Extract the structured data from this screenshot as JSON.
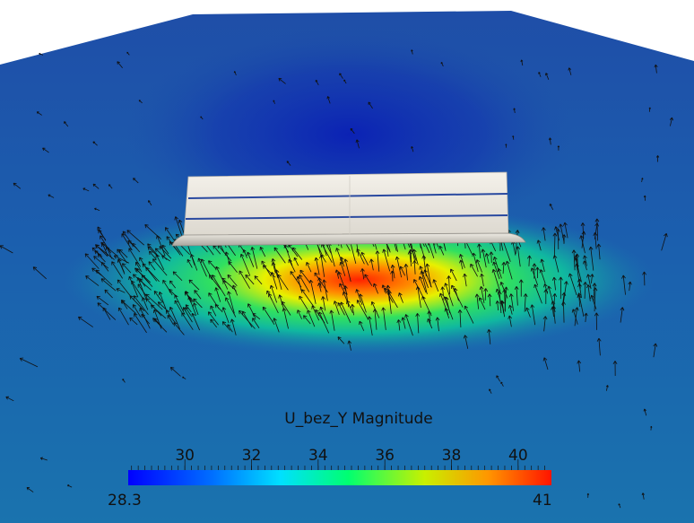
{
  "scene": {
    "description_colors": {
      "background_far": "#1a3f9e",
      "background_near": "#1a6aa8",
      "object_surface": "#ece9e0"
    }
  },
  "colorbar": {
    "title": "U_bez_Y Magnitude",
    "range_min": 28.3,
    "range_max": 41,
    "range_min_label": "28.3",
    "range_max_label": "41",
    "ticks": [
      {
        "value": 30,
        "label": "30"
      },
      {
        "value": 32,
        "label": "32"
      },
      {
        "value": 34,
        "label": "34"
      },
      {
        "value": 36,
        "label": "36"
      },
      {
        "value": 38,
        "label": "38"
      },
      {
        "value": 40,
        "label": "40"
      }
    ],
    "colormap": [
      "#0000ff",
      "#00c8ff",
      "#00ff8c",
      "#d8f000",
      "#ff7800",
      "#ff1a00"
    ]
  }
}
